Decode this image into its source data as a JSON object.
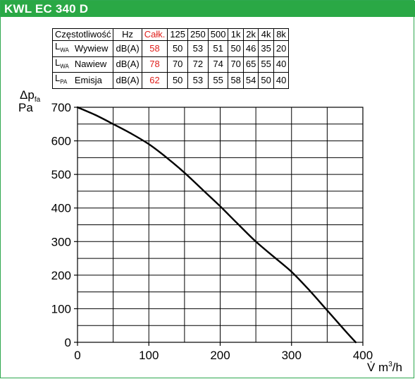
{
  "header": {
    "title": "KWL EC 340 D"
  },
  "noise_table": {
    "columns": [
      "Częstotliwość",
      "Hz",
      "Całk.",
      "125",
      "250",
      "500",
      "1k",
      "2k",
      "4k",
      "8k"
    ],
    "rows": [
      {
        "symbol": "L",
        "symbol_sub": "WA",
        "name": "Wywiew",
        "unit": "dB(A)",
        "total": "58",
        "values": [
          "50",
          "53",
          "51",
          "50",
          "46",
          "35",
          "20"
        ]
      },
      {
        "symbol": "L",
        "symbol_sub": "WA",
        "name": "Nawiew",
        "unit": "dB(A)",
        "total": "78",
        "values": [
          "70",
          "72",
          "74",
          "70",
          "65",
          "55",
          "40"
        ]
      },
      {
        "symbol": "L",
        "symbol_sub": "PA",
        "name": "Emisja",
        "unit": "dB(A)",
        "total": "62",
        "values": [
          "50",
          "53",
          "55",
          "58",
          "54",
          "50",
          "40"
        ]
      }
    ],
    "total_color": "#e0201c"
  },
  "chart_data": {
    "type": "line",
    "ylabel_main": "Δp",
    "ylabel_sub": "fa",
    "ylabel_unit": "Pa",
    "xlabel_main": "V̇ m",
    "xlabel_sup": "3",
    "xlabel_tail": "/h",
    "xlim": [
      0,
      400
    ],
    "ylim": [
      0,
      700
    ],
    "x_ticks": [
      0,
      100,
      200,
      300,
      400
    ],
    "y_ticks": [
      0,
      100,
      200,
      300,
      400,
      500,
      600,
      700
    ],
    "x_grid_step": 50,
    "y_grid_step": 50,
    "grid": true,
    "series": [
      {
        "x": [
          0,
          25,
          50,
          75,
          100,
          125,
          150,
          175,
          200,
          225,
          250,
          275,
          300,
          325,
          350,
          375,
          390
        ],
        "y": [
          700,
          677,
          650,
          622,
          590,
          550,
          505,
          455,
          405,
          352,
          300,
          255,
          210,
          155,
          95,
          35,
          0
        ]
      }
    ],
    "line_color": "#000000",
    "grid_color": "#000000"
  }
}
